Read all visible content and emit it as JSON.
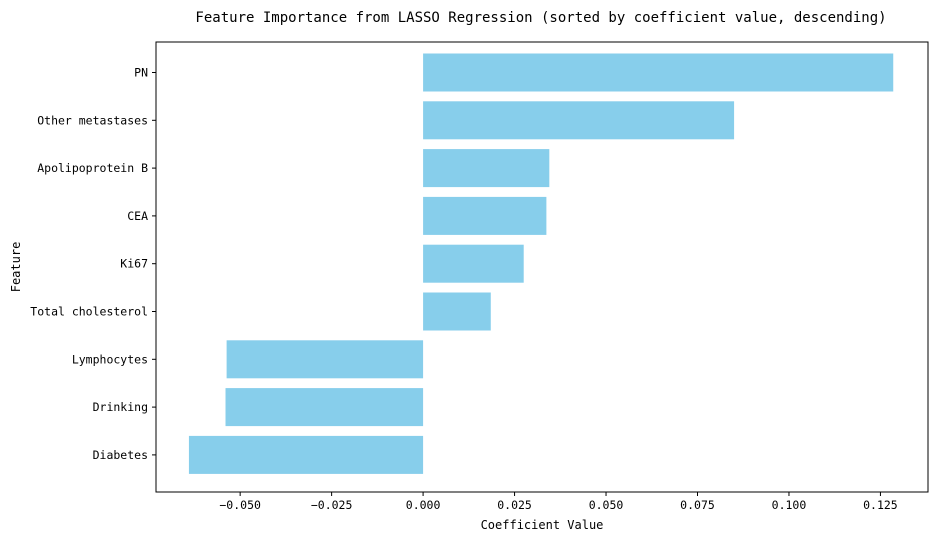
{
  "chart_data": {
    "type": "bar",
    "orientation": "horizontal",
    "title": "Feature Importance from LASSO Regression (sorted by coefficient value, descending)",
    "xlabel": "Coefficient Value",
    "ylabel": "Feature",
    "categories": [
      "PN",
      "Other metastases",
      "Apolipoprotein B",
      "CEA",
      "Ki67",
      "Total cholesterol",
      "Lymphocytes",
      "Drinking",
      "Diabetes"
    ],
    "values": [
      0.1285,
      0.085,
      0.0345,
      0.0337,
      0.0275,
      0.0185,
      -0.0537,
      -0.054,
      -0.064
    ],
    "xlim": [
      -0.073,
      0.138
    ],
    "xticks": [
      -0.05,
      -0.025,
      0.0,
      0.025,
      0.05,
      0.075,
      0.1,
      0.125
    ],
    "xtick_labels": [
      "−0.050",
      "−0.025",
      "0.000",
      "0.025",
      "0.050",
      "0.075",
      "0.100",
      "0.125"
    ],
    "grid": false,
    "bar_color": "#87CEEB",
    "axis_color": "#000000"
  }
}
